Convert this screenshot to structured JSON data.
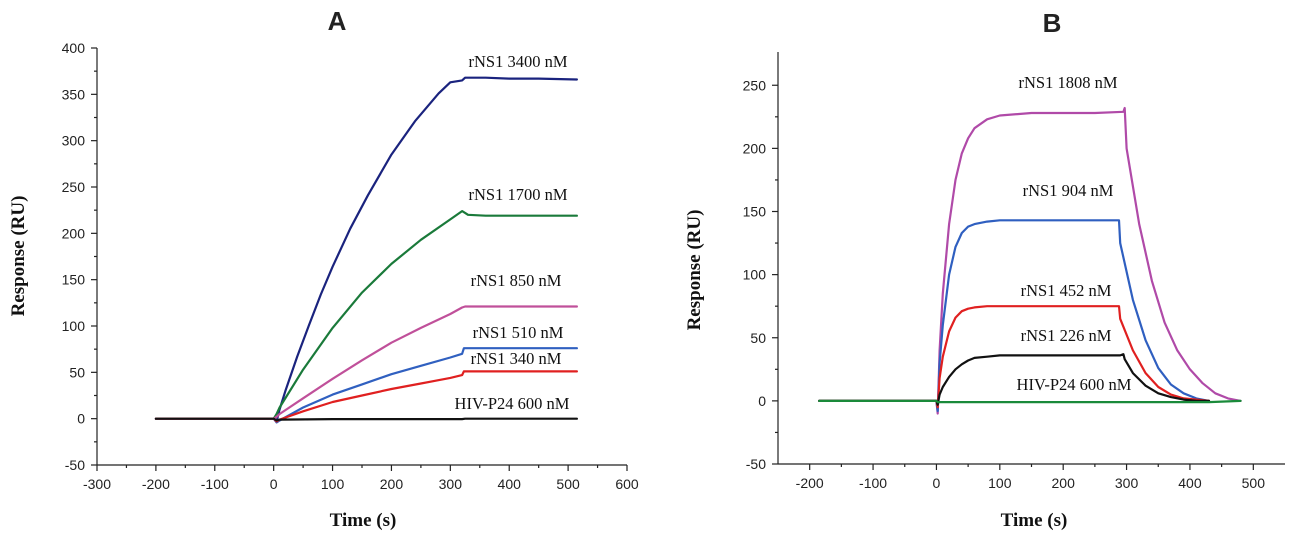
{
  "chart_data": [
    {
      "type": "line",
      "panel": "A",
      "xlabel": "Time (s)",
      "ylabel": "Response (RU)",
      "xlim": [
        -300,
        600
      ],
      "ylim": [
        -50,
        400
      ],
      "xticks": [
        -300,
        -200,
        -100,
        0,
        100,
        200,
        300,
        400,
        500,
        600
      ],
      "yticks": [
        -50,
        0,
        50,
        100,
        150,
        200,
        250,
        300,
        350,
        400
      ],
      "series": [
        {
          "name": "rNS1 3400 nM",
          "color": "#1a237e",
          "x": [
            -200,
            0,
            5,
            10,
            20,
            40,
            60,
            80,
            100,
            130,
            160,
            200,
            240,
            280,
            300,
            320,
            325,
            330,
            360,
            400,
            450,
            515
          ],
          "y": [
            0,
            0,
            -3,
            10,
            30,
            67,
            101,
            134,
            164,
            205,
            241,
            285,
            321,
            351,
            363,
            365,
            368,
            368,
            368,
            367,
            367,
            366
          ]
        },
        {
          "name": "rNS1 1700 nM",
          "color": "#1a7a3a",
          "x": [
            -200,
            0,
            5,
            10,
            50,
            100,
            150,
            200,
            250,
            300,
            320,
            325,
            330,
            360,
            400,
            450,
            515
          ],
          "y": [
            0,
            0,
            5,
            12,
            53,
            98,
            136,
            167,
            193,
            215,
            224,
            222,
            220,
            219,
            219,
            219,
            219
          ]
        },
        {
          "name": "rNS1 850 nM",
          "color": "#c0509a",
          "x": [
            -200,
            0,
            5,
            10,
            50,
            100,
            150,
            200,
            250,
            300,
            320,
            325,
            360,
            400,
            450,
            515
          ],
          "y": [
            0,
            0,
            2,
            5,
            22,
            43,
            63,
            82,
            98,
            113,
            120,
            121,
            121,
            121,
            121,
            121
          ]
        },
        {
          "name": "rNS1 510 nM",
          "color": "#3060c0",
          "x": [
            -200,
            0,
            5,
            10,
            50,
            100,
            150,
            200,
            250,
            300,
            320,
            323,
            325,
            360,
            400,
            450,
            515
          ],
          "y": [
            0,
            0,
            -4,
            -2,
            12,
            26,
            37,
            48,
            57,
            66,
            70,
            76,
            76,
            76,
            76,
            76,
            76
          ]
        },
        {
          "name": "rNS1 340 nM",
          "color": "#e02020",
          "x": [
            -200,
            0,
            5,
            10,
            50,
            100,
            150,
            200,
            250,
            300,
            320,
            323,
            325,
            360,
            400,
            450,
            515
          ],
          "y": [
            0,
            0,
            -3,
            -1,
            8,
            18,
            25,
            32,
            38,
            44,
            47,
            51,
            51,
            51,
            51,
            51,
            51
          ]
        },
        {
          "name": "HIV-P24 600 nM",
          "color": "#111111",
          "x": [
            -200,
            0,
            5,
            10,
            100,
            200,
            300,
            320,
            325,
            400,
            515
          ],
          "y": [
            0,
            0,
            -2,
            -1,
            -0.5,
            -0.5,
            -0.5,
            -0.5,
            0,
            0,
            0
          ]
        }
      ]
    },
    {
      "type": "line",
      "panel": "B",
      "xlabel": "Time (s)",
      "ylabel": "Response (RU)",
      "xlim": [
        -250,
        550
      ],
      "ylim": [
        -50,
        270
      ],
      "xticks": [
        -200,
        -100,
        0,
        100,
        200,
        300,
        400,
        500
      ],
      "yticks": [
        -50,
        0,
        50,
        100,
        150,
        200,
        250
      ],
      "series": [
        {
          "name": "rNS1 1808 nM",
          "color": "#b04aa8",
          "x": [
            -185,
            0,
            2,
            5,
            10,
            20,
            30,
            40,
            50,
            60,
            80,
            100,
            150,
            200,
            250,
            295,
            297,
            300,
            320,
            340,
            360,
            380,
            400,
            420,
            440,
            460,
            480
          ],
          "y": [
            0,
            0,
            -10,
            40,
            85,
            140,
            175,
            196,
            208,
            216,
            223,
            226,
            228,
            228,
            228,
            229,
            232,
            200,
            140,
            95,
            62,
            40,
            25,
            14,
            6,
            2,
            0
          ]
        },
        {
          "name": "rNS1 904 nM",
          "color": "#2f5fc0",
          "x": [
            -185,
            0,
            2,
            5,
            10,
            20,
            30,
            40,
            50,
            60,
            80,
            100,
            150,
            200,
            250,
            288,
            290,
            310,
            330,
            350,
            370,
            390,
            410,
            430
          ],
          "y": [
            0,
            0,
            -8,
            30,
            60,
            100,
            122,
            133,
            138,
            140,
            142,
            143,
            143,
            143,
            143,
            143,
            125,
            80,
            48,
            26,
            13,
            6,
            2,
            0
          ]
        },
        {
          "name": "rNS1 452 nM",
          "color": "#e02020",
          "x": [
            -185,
            0,
            2,
            5,
            10,
            20,
            30,
            40,
            50,
            60,
            80,
            100,
            150,
            200,
            250,
            288,
            290,
            310,
            330,
            350,
            370,
            390,
            410,
            430
          ],
          "y": [
            0,
            0,
            -5,
            18,
            35,
            55,
            66,
            71,
            73,
            74,
            75,
            75,
            75,
            75,
            75,
            75,
            65,
            40,
            22,
            11,
            5,
            2,
            1,
            0
          ]
        },
        {
          "name": "rNS1 226 nM",
          "color": "#111111",
          "x": [
            -185,
            0,
            2,
            5,
            10,
            20,
            30,
            40,
            50,
            60,
            80,
            100,
            150,
            200,
            250,
            290,
            295,
            297,
            310,
            330,
            350,
            370,
            390,
            410,
            430
          ],
          "y": [
            0,
            0,
            -3,
            5,
            11,
            19,
            25,
            29,
            32,
            34,
            35,
            36,
            36,
            36,
            36,
            36,
            37,
            33,
            22,
            12,
            6,
            3,
            1,
            0,
            0
          ]
        },
        {
          "name": "HIV-P24 600 nM",
          "color": "#1a8a3a",
          "x": [
            -185,
            0,
            2,
            100,
            200,
            300,
            400,
            430,
            480
          ],
          "y": [
            0,
            0,
            -1,
            -1,
            -1,
            -1,
            -1,
            -1,
            0
          ]
        }
      ]
    }
  ],
  "panels": [
    {
      "letter": "A",
      "xlabel": "Time (s)",
      "ylabel": "Response (RU)"
    },
    {
      "letter": "B",
      "xlabel": "Time (s)",
      "ylabel": "Response (RU)"
    }
  ]
}
